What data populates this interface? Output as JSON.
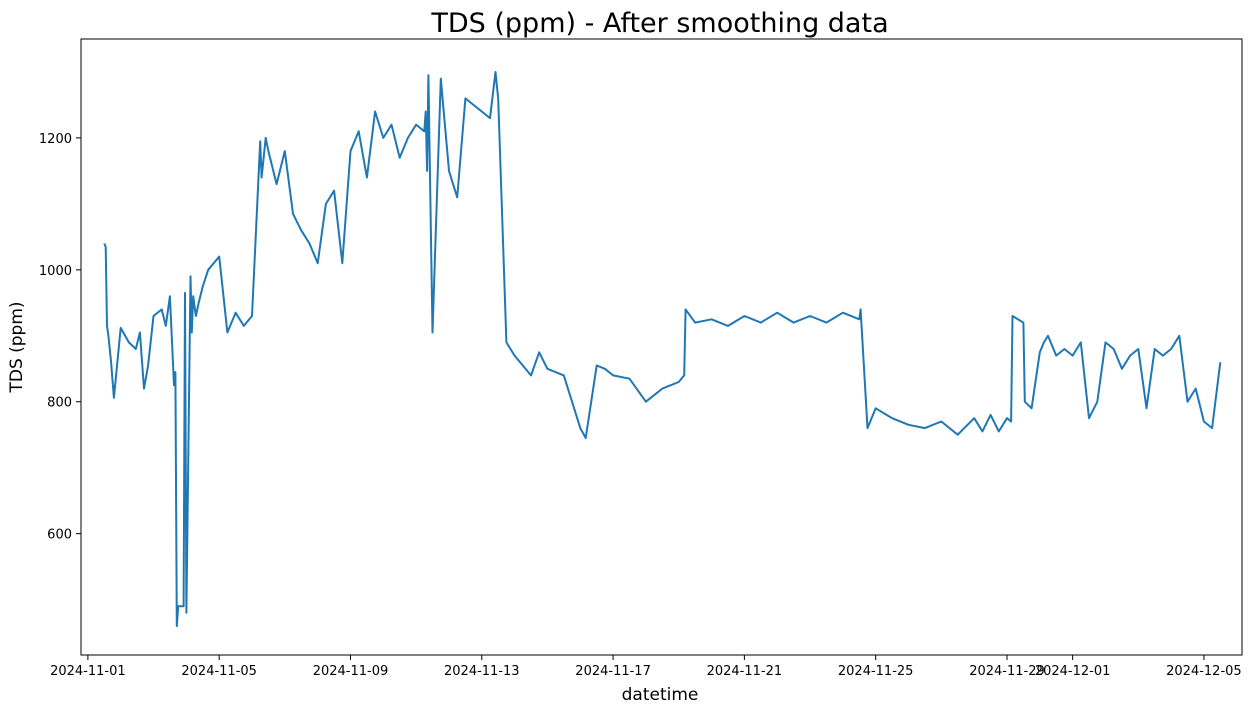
{
  "chart_data": {
    "type": "line",
    "title": "TDS (ppm) - After smoothing data",
    "xlabel": "datetime",
    "ylabel": "TDS (ppm)",
    "x_tick_labels": [
      "2024-11-01",
      "2024-11-05",
      "2024-11-09",
      "2024-11-13",
      "2024-11-17",
      "2024-11-21",
      "2024-11-25",
      "2024-11-29",
      "2024-12-01",
      "2024-12-05"
    ],
    "y_tick_labels": [
      "600",
      "800",
      "1000",
      "1200"
    ],
    "xlim": [
      "2024-10-31 18:58",
      "2024-12-06 03:50"
    ],
    "ylim": [
      416,
      1350
    ],
    "grid": false,
    "color": "#1f77b4",
    "series": [
      {
        "x": [
          "2024-11-01 12:00",
          "2024-11-01 13:00",
          "2024-11-01 14:00",
          "2024-11-01 15:00",
          "2024-11-01 17:00",
          "2024-11-01 19:00",
          "2024-11-02 00:00",
          "2024-11-02 06:00",
          "2024-11-02 11:00",
          "2024-11-02 14:00",
          "2024-11-02 17:00",
          "2024-11-02 20:00",
          "2024-11-03 00:00",
          "2024-11-03 06:00",
          "2024-11-03 09:00",
          "2024-11-03 12:00",
          "2024-11-03 15:00",
          "2024-11-03 16:00",
          "2024-11-03 17:00",
          "2024-11-03 18:00",
          "2024-11-03 22:00",
          "2024-11-03 23:00",
          "2024-11-04 00:00",
          "2024-11-04 03:00",
          "2024-11-04 04:00",
          "2024-11-04 05:00",
          "2024-11-04 07:00",
          "2024-11-04 09:00",
          "2024-11-04 12:00",
          "2024-11-04 16:00",
          "2024-11-05 00:00",
          "2024-11-05 06:00",
          "2024-11-05 12:00",
          "2024-11-05 18:00",
          "2024-11-06 00:00",
          "2024-11-06 06:00",
          "2024-11-06 07:00",
          "2024-11-06 10:00",
          "2024-11-06 12:00",
          "2024-11-06 18:00",
          "2024-11-07 00:00",
          "2024-11-07 06:00",
          "2024-11-07 12:00",
          "2024-11-07 18:00",
          "2024-11-08 00:00",
          "2024-11-08 06:00",
          "2024-11-08 12:00",
          "2024-11-08 18:00",
          "2024-11-09 00:00",
          "2024-11-09 06:00",
          "2024-11-09 12:00",
          "2024-11-09 18:00",
          "2024-11-10 00:00",
          "2024-11-10 06:00",
          "2024-11-10 12:00",
          "2024-11-10 18:00",
          "2024-11-11 00:00",
          "2024-11-11 06:00",
          "2024-11-11 07:00",
          "2024-11-11 08:00",
          "2024-11-11 09:00",
          "2024-11-11 12:00",
          "2024-11-11 18:00",
          "2024-11-12 00:00",
          "2024-11-12 06:00",
          "2024-11-12 12:00",
          "2024-11-12 18:00",
          "2024-11-13 00:00",
          "2024-11-13 06:00",
          "2024-11-13 10:00",
          "2024-11-13 11:00",
          "2024-11-13 12:00",
          "2024-11-13 18:00",
          "2024-11-14 00:00",
          "2024-11-14 06:00",
          "2024-11-14 12:00",
          "2024-11-14 18:00",
          "2024-11-15 00:00",
          "2024-11-15 12:00",
          "2024-11-16 00:00",
          "2024-11-16 04:00",
          "2024-11-16 12:00",
          "2024-11-16 18:00",
          "2024-11-17 00:00",
          "2024-11-17 12:00",
          "2024-11-18 00:00",
          "2024-11-18 12:00",
          "2024-11-19 00:00",
          "2024-11-19 04:00",
          "2024-11-19 05:00",
          "2024-11-19 12:00",
          "2024-11-20 00:00",
          "2024-11-20 12:00",
          "2024-11-21 00:00",
          "2024-11-21 12:00",
          "2024-11-22 00:00",
          "2024-11-22 12:00",
          "2024-11-23 00:00",
          "2024-11-23 12:00",
          "2024-11-24 00:00",
          "2024-11-24 12:00",
          "2024-11-24 13:00",
          "2024-11-24 18:00",
          "2024-11-25 00:00",
          "2024-11-25 12:00",
          "2024-11-26 00:00",
          "2024-11-26 12:00",
          "2024-11-27 00:00",
          "2024-11-27 12:00",
          "2024-11-28 00:00",
          "2024-11-28 06:00",
          "2024-11-28 12:00",
          "2024-11-28 18:00",
          "2024-11-29 00:00",
          "2024-11-29 03:00",
          "2024-11-29 04:00",
          "2024-11-29 12:00",
          "2024-11-29 13:00",
          "2024-11-29 18:00",
          "2024-11-30 00:00",
          "2024-11-30 03:00",
          "2024-11-30 06:00",
          "2024-11-30 12:00",
          "2024-11-30 18:00",
          "2024-12-01 00:00",
          "2024-12-01 06:00",
          "2024-12-01 12:00",
          "2024-12-01 18:00",
          "2024-12-02 00:00",
          "2024-12-02 06:00",
          "2024-12-02 12:00",
          "2024-12-02 18:00",
          "2024-12-03 00:00",
          "2024-12-03 06:00",
          "2024-12-03 12:00",
          "2024-12-03 18:00",
          "2024-12-04 00:00",
          "2024-12-04 06:00",
          "2024-12-04 12:00",
          "2024-12-04 18:00",
          "2024-12-05 00:00",
          "2024-12-05 06:00",
          "2024-12-05 12:00"
        ],
        "y": [
          1040,
          1035,
          915,
          900,
          860,
          806,
          912,
          890,
          880,
          905,
          820,
          855,
          930,
          940,
          915,
          960,
          825,
          845,
          460,
          490,
          490,
          965,
          480,
          990,
          905,
          960,
          930,
          950,
          975,
          1000,
          1020,
          905,
          935,
          915,
          930,
          1195,
          1140,
          1200,
          1180,
          1130,
          1180,
          1085,
          1060,
          1040,
          1010,
          1100,
          1120,
          1010,
          1180,
          1210,
          1140,
          1240,
          1200,
          1220,
          1170,
          1200,
          1220,
          1210,
          1240,
          1150,
          1295,
          905,
          1290,
          1150,
          1110,
          1260,
          1250,
          1240,
          1230,
          1300,
          1280,
          1260,
          890,
          870,
          855,
          840,
          875,
          850,
          840,
          760,
          745,
          855,
          850,
          840,
          835,
          800,
          820,
          830,
          840,
          940,
          920,
          925,
          915,
          930,
          920,
          935,
          920,
          930,
          920,
          935,
          925,
          940,
          760,
          790,
          775,
          765,
          760,
          770,
          750,
          775,
          755,
          780,
          755,
          775,
          770,
          930,
          920,
          800,
          790,
          875,
          890,
          900,
          870,
          880,
          870,
          890,
          775,
          800,
          890,
          880,
          850,
          870,
          880,
          790,
          880,
          870,
          880,
          900,
          800,
          820,
          770,
          760,
          860
        ]
      }
    ]
  }
}
